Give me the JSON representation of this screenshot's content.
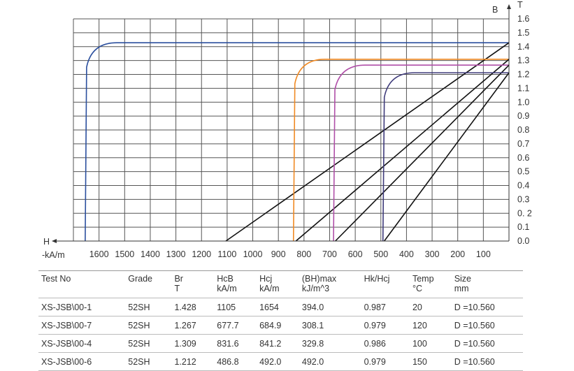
{
  "chart_data": {
    "type": "line",
    "axis_labels": {
      "b": "B",
      "t": "T",
      "h": "H",
      "h_unit": "-kA/m"
    },
    "x_ticks": [
      "1600",
      "1500",
      "1400",
      "1300",
      "1200",
      "1100",
      "1000",
      "900",
      "800",
      "700",
      "600",
      "500",
      "400",
      "300",
      "200",
      "100"
    ],
    "y_ticks": [
      "1.6",
      "1.5",
      "1.4",
      "1.3",
      "1.2",
      "1.1",
      "1.0",
      "0.9",
      "0.8",
      "0.7",
      "0.6",
      "0.5",
      "0.4",
      "0.3",
      "0. 2",
      "0.1",
      "0.0"
    ],
    "xlim": [
      1700,
      0
    ],
    "ylim": [
      0,
      1.6
    ],
    "grid": true,
    "series": [
      {
        "color": "#2b4f9e",
        "br": 1.428,
        "hcb": 1105,
        "hcj": 1654
      },
      {
        "color": "#f08a24",
        "br": 1.309,
        "hcb": 831.6,
        "hcj": 841.2
      },
      {
        "color": "#b04fa8",
        "br": 1.267,
        "hcb": 677.7,
        "hcj": 684.9
      },
      {
        "color": "#3e3a7a",
        "br": 1.212,
        "hcb": 486.8,
        "hcj": 492.0
      }
    ]
  },
  "table": {
    "headers": [
      [
        "Test No",
        ""
      ],
      [
        "Grade",
        ""
      ],
      [
        "Br",
        "T"
      ],
      [
        "HcB",
        "kA/m"
      ],
      [
        "Hcj",
        "kA/m"
      ],
      [
        "(BH)max",
        "kJ/m^3"
      ],
      [
        "Hk/Hcj",
        ""
      ],
      [
        "Temp",
        "°C"
      ],
      [
        "Size",
        "mm"
      ]
    ],
    "rows": [
      [
        "XS-JSB\\00-1",
        "52SH",
        "1.428",
        "1105",
        "1654",
        "394.0",
        "0.987",
        "20",
        "D =10.560"
      ],
      [
        "XS-JSB\\00-7",
        "52SH",
        "1.267",
        "677.7",
        "684.9",
        "308.1",
        "0.979",
        "120",
        "D =10.560"
      ],
      [
        "XS-JSB\\00-4",
        "52SH",
        "1.309",
        "831.6",
        "841.2",
        "329.8",
        "0.986",
        "100",
        "D =10.560"
      ],
      [
        "XS-JSB\\00-6",
        "52SH",
        "1.212",
        "486.8",
        "492.0",
        "492.0",
        "0.979",
        "150",
        "D =10.560"
      ]
    ]
  }
}
